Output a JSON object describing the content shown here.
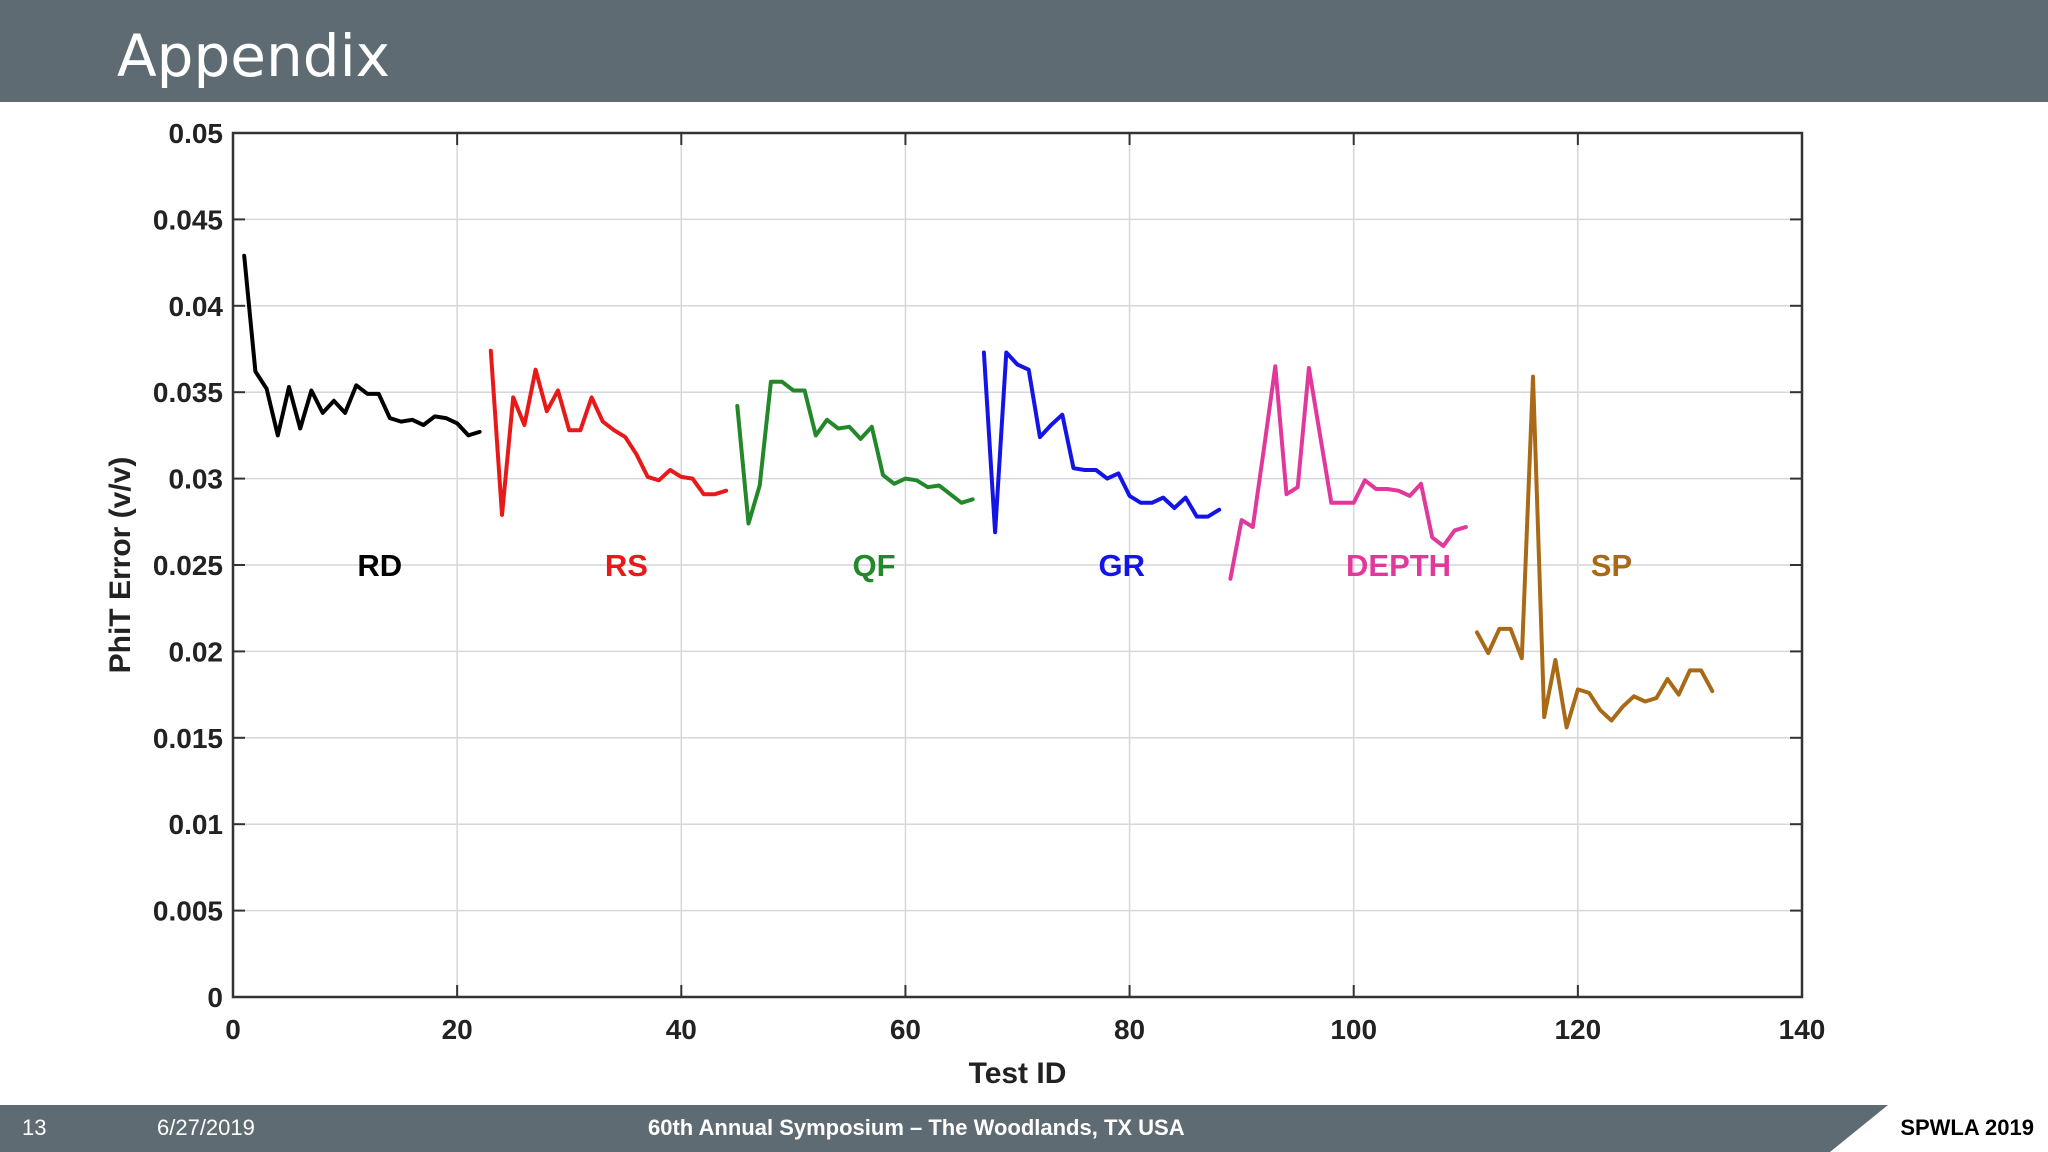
{
  "slide": {
    "title": "Appendix"
  },
  "footer": {
    "page": "13",
    "date": "6/27/2019",
    "event": "60th Annual Symposium – The Woodlands, TX USA",
    "brand": "SPWLA 2019"
  },
  "chart_data": {
    "type": "line",
    "title": "",
    "xlabel": "Test ID",
    "ylabel": "PhiT Error (v/v)",
    "xlim": [
      0,
      140
    ],
    "ylim": [
      0,
      0.05
    ],
    "xticks": [
      0,
      20,
      40,
      60,
      80,
      100,
      120,
      140
    ],
    "xtick_labels": [
      "0",
      "20",
      "40",
      "60",
      "80",
      "100",
      "120",
      "140"
    ],
    "yticks": [
      0,
      0.005,
      0.01,
      0.015,
      0.02,
      0.025,
      0.03,
      0.035,
      0.04,
      0.045,
      0.05
    ],
    "ytick_labels": [
      "0",
      "0.005",
      "0.01",
      "0.015",
      "0.02",
      "0.025",
      "0.03",
      "0.035",
      "0.04",
      "0.045",
      "0.05"
    ],
    "grid": true,
    "label_y": 0.025,
    "series": [
      {
        "name": "RD",
        "color": "#000000",
        "label_x": 13.1,
        "x": [
          1,
          2,
          3,
          4,
          5,
          6,
          7,
          8,
          9,
          10,
          11,
          12,
          13,
          14,
          15,
          16,
          17,
          18,
          19,
          20,
          21,
          22
        ],
        "y": [
          0.0429,
          0.0362,
          0.0352,
          0.0325,
          0.0353,
          0.0329,
          0.0351,
          0.0338,
          0.0345,
          0.0338,
          0.0354,
          0.0349,
          0.0349,
          0.0335,
          0.0333,
          0.0334,
          0.0331,
          0.0336,
          0.0335,
          0.0332,
          0.0325,
          0.0327
        ]
      },
      {
        "name": "RS",
        "color": "#e81919",
        "label_x": 35.1,
        "x": [
          23,
          24,
          25,
          26,
          27,
          28,
          29,
          30,
          31,
          32,
          33,
          34,
          35,
          36,
          37,
          38,
          39,
          40,
          41,
          42,
          43,
          44
        ],
        "y": [
          0.0374,
          0.0279,
          0.0347,
          0.0331,
          0.0363,
          0.0339,
          0.0351,
          0.0328,
          0.0328,
          0.0347,
          0.0333,
          0.0328,
          0.0324,
          0.0314,
          0.0301,
          0.0299,
          0.0305,
          0.0301,
          0.03,
          0.0291,
          0.0291,
          0.0293
        ]
      },
      {
        "name": "QF",
        "color": "#22882a",
        "label_x": 57.2,
        "x": [
          45,
          46,
          47,
          48,
          49,
          50,
          51,
          52,
          53,
          54,
          55,
          56,
          57,
          58,
          59,
          60,
          61,
          62,
          63,
          64,
          65,
          66
        ],
        "y": [
          0.0342,
          0.0274,
          0.0296,
          0.0356,
          0.0356,
          0.0351,
          0.0351,
          0.0325,
          0.0334,
          0.0329,
          0.033,
          0.0323,
          0.033,
          0.0302,
          0.0297,
          0.03,
          0.0299,
          0.0295,
          0.0296,
          0.0291,
          0.0286,
          0.0288
        ]
      },
      {
        "name": "GR",
        "color": "#1414e6",
        "label_x": 79.3,
        "x": [
          67,
          68,
          69,
          70,
          71,
          72,
          73,
          74,
          75,
          76,
          77,
          78,
          79,
          80,
          81,
          82,
          83,
          84,
          85,
          86,
          87,
          88
        ],
        "y": [
          0.0373,
          0.0269,
          0.0373,
          0.0366,
          0.0363,
          0.0324,
          0.0331,
          0.0337,
          0.0306,
          0.0305,
          0.0305,
          0.03,
          0.0303,
          0.029,
          0.0286,
          0.0286,
          0.0289,
          0.0283,
          0.0289,
          0.0278,
          0.0278,
          0.0282
        ]
      },
      {
        "name": "DEPTH",
        "color": "#e0399b",
        "label_x": 104.0,
        "x": [
          89,
          90,
          91,
          92,
          93,
          94,
          95,
          96,
          97,
          98,
          99,
          100,
          101,
          102,
          103,
          104,
          105,
          106,
          107,
          108,
          109,
          110
        ],
        "y": [
          0.0242,
          0.0276,
          0.0272,
          0.0318,
          0.0365,
          0.0291,
          0.0295,
          0.0364,
          0.0325,
          0.0286,
          0.0286,
          0.0286,
          0.0299,
          0.0294,
          0.0294,
          0.0293,
          0.029,
          0.0297,
          0.0266,
          0.0261,
          0.027,
          0.0272
        ]
      },
      {
        "name": "SP",
        "color": "#a86a16",
        "label_x": 123.0,
        "x": [
          111,
          112,
          113,
          114,
          115,
          116,
          117,
          118,
          119,
          120,
          121,
          122,
          123,
          124,
          125,
          126,
          127,
          128,
          129,
          130,
          131,
          132
        ],
        "y": [
          0.0211,
          0.0199,
          0.0213,
          0.0213,
          0.0196,
          0.0359,
          0.0162,
          0.0195,
          0.0156,
          0.0178,
          0.0176,
          0.0166,
          0.016,
          0.0168,
          0.0174,
          0.0171,
          0.0173,
          0.0184,
          0.0175,
          0.0189,
          0.0189,
          0.0177
        ]
      }
    ]
  }
}
